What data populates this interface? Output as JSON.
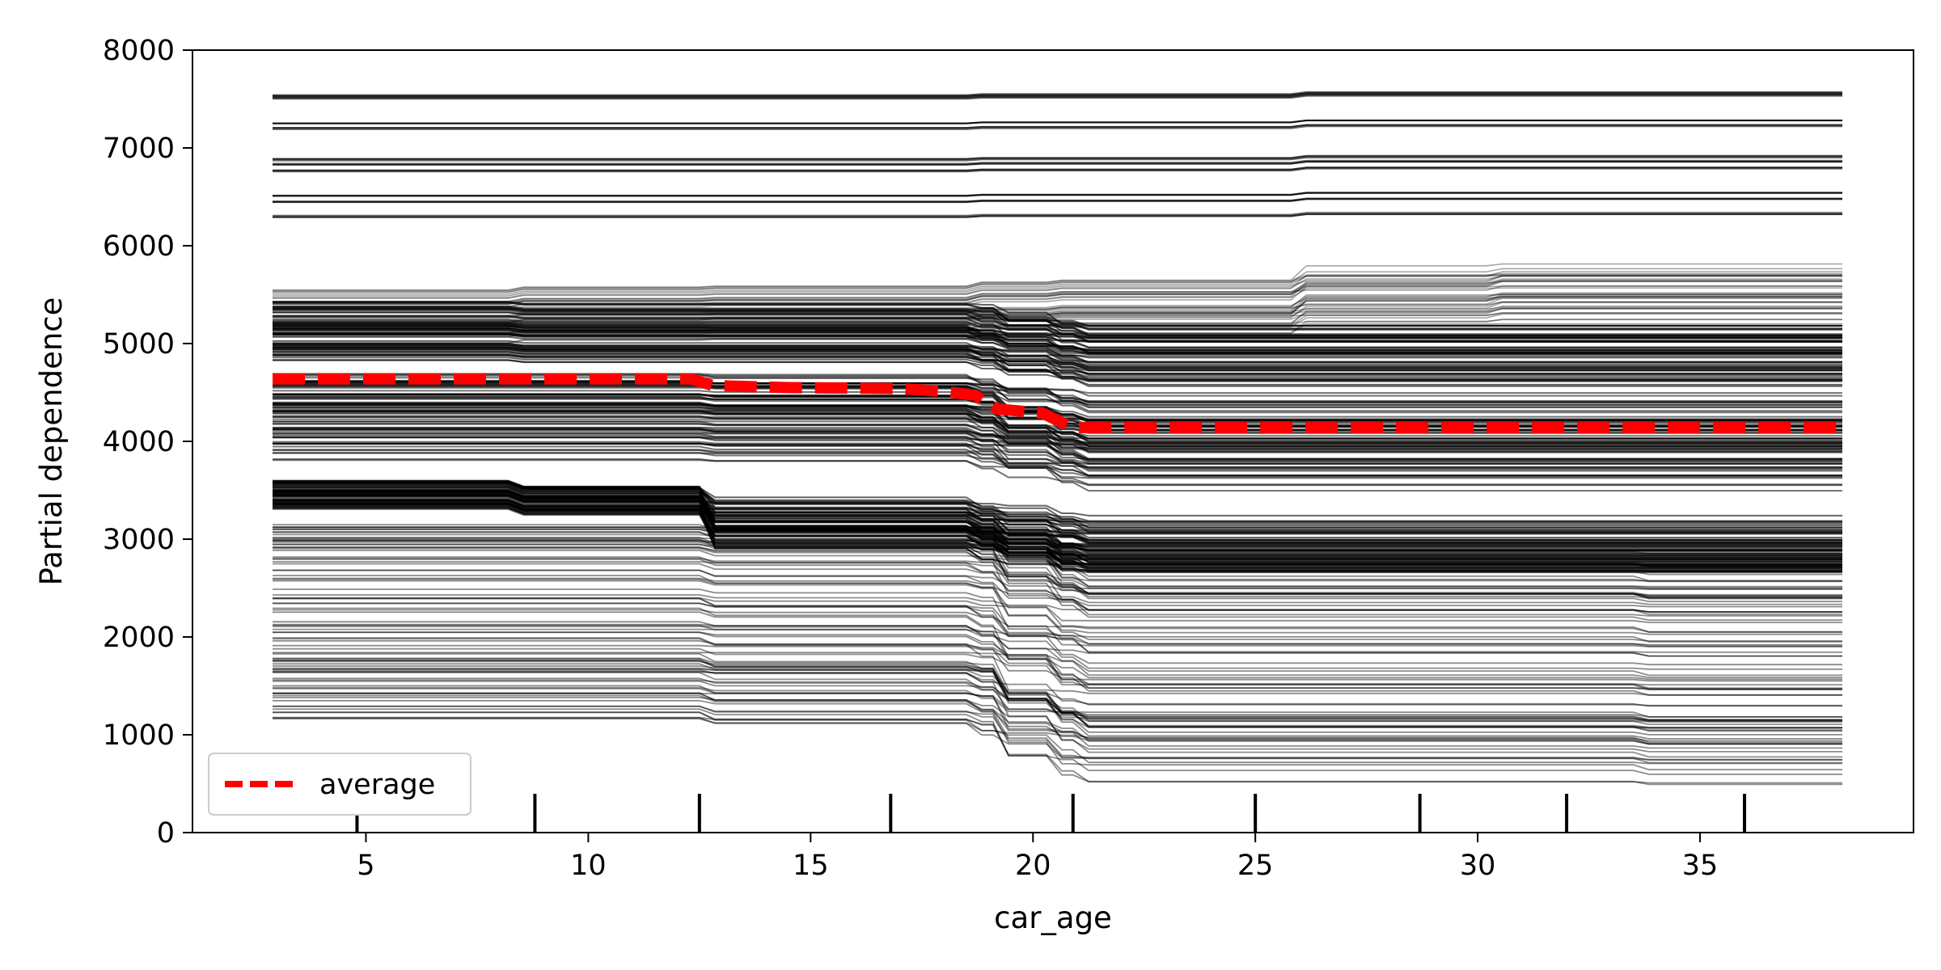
{
  "chart_data": {
    "type": "line",
    "title": "",
    "xlabel": "car_age",
    "ylabel": "Partial dependence",
    "xlim": [
      1.1,
      39.8
    ],
    "ylim": [
      0,
      8000
    ],
    "xticks": [
      5,
      10,
      15,
      20,
      25,
      30,
      35
    ],
    "yticks": [
      0,
      1000,
      2000,
      3000,
      4000,
      5000,
      6000,
      7000,
      8000
    ],
    "grid": false,
    "legend": {
      "position": "lower-left",
      "entries": [
        "average"
      ]
    },
    "colors": {
      "ice": "#000000",
      "average": "#ff0000"
    },
    "x_range": [
      2.9,
      38.2
    ],
    "ice_step_x": [
      8.2,
      12.5,
      18.5,
      19.1,
      20.3,
      20.9,
      25.8,
      30.2,
      33.5
    ],
    "average": {
      "name": "average",
      "x": [
        2.9,
        12.3,
        12.8,
        14.5,
        17.0,
        18.0,
        18.7,
        19.2,
        20.2,
        20.9,
        38.2
      ],
      "y": [
        4640,
        4640,
        4570,
        4550,
        4540,
        4510,
        4470,
        4330,
        4290,
        4140,
        4140
      ]
    },
    "rug_x": [
      4.8,
      8.8,
      12.5,
      16.8,
      20.9,
      25.0,
      28.7,
      32.0,
      36.0
    ]
  }
}
